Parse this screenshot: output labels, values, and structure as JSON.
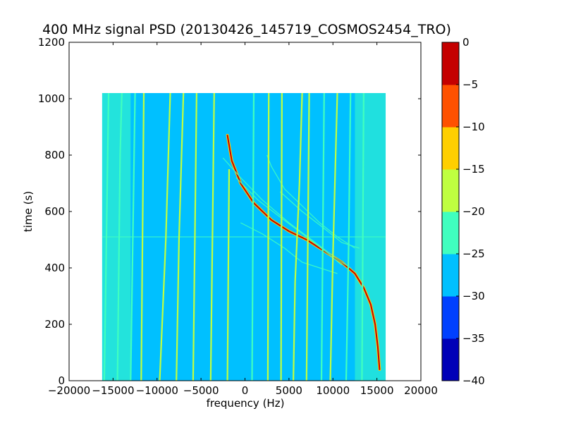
{
  "chart_data": {
    "type": "heatmap",
    "title": "400 MHz signal PSD (20130426_145719_COSMOS2454_TRO)",
    "xlabel": "frequency (Hz)",
    "ylabel": "time (s)",
    "xlim": [
      -20000,
      20000
    ],
    "ylim": [
      0,
      1200
    ],
    "xticks": [
      -20000,
      -15000,
      -10000,
      -5000,
      0,
      5000,
      10000,
      15000,
      20000
    ],
    "xtick_labels": [
      "−20000",
      "−15000",
      "−10000",
      "−5000",
      "0",
      "5000",
      "10000",
      "15000",
      "20000"
    ],
    "yticks": [
      0,
      200,
      400,
      600,
      800,
      1000,
      1200
    ],
    "ytick_labels": [
      "0",
      "200",
      "400",
      "600",
      "800",
      "1000",
      "1200"
    ],
    "data_extent": {
      "x": [
        -16250,
        16000
      ],
      "y": [
        0,
        1020
      ]
    },
    "background_level_db": -28,
    "noise_edge_level_db": -22,
    "horizontal_line_time_s": 510,
    "colorbar": {
      "levels": [
        -40,
        -35,
        -30,
        -25,
        -20,
        -15,
        -10,
        -5,
        0
      ],
      "tick_labels": [
        "−40",
        "−35",
        "−30",
        "−25",
        "−20",
        "−15",
        "−10",
        "−5",
        "0"
      ],
      "colors": [
        "#0000b7",
        "#0040ff",
        "#00c0ff",
        "#40ffbf",
        "#bfff40",
        "#ffcf00",
        "#ff5100",
        "#c40000"
      ]
    },
    "series": [
      {
        "kind": "doppler-curve",
        "level_db": -2,
        "points": [
          [
            -2000,
            870
          ],
          [
            -1500,
            780
          ],
          [
            -500,
            700
          ],
          [
            1000,
            630
          ],
          [
            3000,
            570
          ],
          [
            5000,
            530
          ],
          [
            7000,
            500
          ],
          [
            9000,
            460
          ],
          [
            11000,
            420
          ],
          [
            12500,
            380
          ],
          [
            13500,
            330
          ],
          [
            14300,
            270
          ],
          [
            14800,
            200
          ],
          [
            15100,
            120
          ],
          [
            15300,
            40
          ]
        ]
      },
      {
        "kind": "weak-curve",
        "level_db": -20,
        "points": [
          [
            -2500,
            790
          ],
          [
            -500,
            720
          ],
          [
            2000,
            640
          ],
          [
            5000,
            560
          ],
          [
            8000,
            490
          ],
          [
            10500,
            430
          ],
          [
            12000,
            400
          ]
        ]
      },
      {
        "kind": "weak-curve",
        "level_db": -20,
        "points": [
          [
            -1000,
            720
          ],
          [
            1500,
            640
          ],
          [
            4000,
            580
          ],
          [
            7000,
            510
          ],
          [
            9500,
            450
          ],
          [
            11000,
            410
          ]
        ]
      },
      {
        "kind": "weak-curve",
        "level_db": -20,
        "points": [
          [
            2500,
            800
          ],
          [
            3000,
            760
          ],
          [
            4500,
            680
          ],
          [
            6500,
            620
          ],
          [
            8500,
            560
          ],
          [
            10500,
            510
          ],
          [
            12500,
            470
          ]
        ]
      },
      {
        "kind": "weak-curve",
        "level_db": -20,
        "points": [
          [
            4000,
            670
          ],
          [
            6500,
            600
          ],
          [
            9000,
            540
          ],
          [
            11000,
            490
          ],
          [
            13000,
            470
          ]
        ]
      },
      {
        "kind": "weak-curve",
        "level_db": -20,
        "points": [
          [
            -500,
            560
          ],
          [
            2000,
            520
          ],
          [
            4500,
            470
          ],
          [
            6500,
            420
          ],
          [
            8500,
            400
          ],
          [
            10500,
            380
          ]
        ]
      },
      {
        "kind": "vertical-line",
        "level_db": -20,
        "points": [
          [
            -15500,
            1020
          ],
          [
            -16000,
            0
          ]
        ]
      },
      {
        "kind": "vertical-line",
        "level_db": -20,
        "points": [
          [
            -14000,
            1020
          ],
          [
            -14200,
            800
          ],
          [
            -14500,
            0
          ]
        ]
      },
      {
        "kind": "vertical-line",
        "level_db": -20,
        "points": [
          [
            -12500,
            1020
          ],
          [
            -13000,
            0
          ]
        ]
      },
      {
        "kind": "vertical-line",
        "level_db": -17,
        "points": [
          [
            -11500,
            1020
          ],
          [
            -11800,
            0
          ]
        ]
      },
      {
        "kind": "vertical-line",
        "level_db": -17,
        "points": [
          [
            -8500,
            1020
          ],
          [
            -9000,
            500
          ],
          [
            -9700,
            0
          ]
        ]
      },
      {
        "kind": "vertical-line",
        "level_db": -17,
        "points": [
          [
            -7000,
            1020
          ],
          [
            -7500,
            500
          ],
          [
            -7800,
            0
          ]
        ]
      },
      {
        "kind": "vertical-line",
        "level_db": -17,
        "points": [
          [
            -5500,
            1020
          ],
          [
            -5700,
            500
          ],
          [
            -5900,
            0
          ]
        ]
      },
      {
        "kind": "vertical-line",
        "level_db": -17,
        "points": [
          [
            -3500,
            1020
          ],
          [
            -3700,
            500
          ],
          [
            -3900,
            0
          ]
        ]
      },
      {
        "kind": "vertical-line",
        "level_db": -17,
        "points": [
          [
            -1800,
            750
          ],
          [
            -2000,
            0
          ]
        ]
      },
      {
        "kind": "vertical-line",
        "level_db": -20,
        "points": [
          [
            1000,
            1020
          ],
          [
            900,
            500
          ],
          [
            800,
            0
          ]
        ]
      },
      {
        "kind": "vertical-line",
        "level_db": -17,
        "points": [
          [
            2700,
            1020
          ],
          [
            2600,
            0
          ]
        ]
      },
      {
        "kind": "vertical-line",
        "level_db": -17,
        "points": [
          [
            4200,
            1020
          ],
          [
            4100,
            0
          ]
        ]
      },
      {
        "kind": "vertical-line",
        "level_db": -17,
        "points": [
          [
            6500,
            1020
          ],
          [
            6200,
            700
          ],
          [
            5700,
            350
          ],
          [
            5500,
            0
          ]
        ]
      },
      {
        "kind": "vertical-line",
        "level_db": -17,
        "points": [
          [
            7300,
            1020
          ],
          [
            7000,
            0
          ]
        ]
      },
      {
        "kind": "vertical-line",
        "level_db": -20,
        "points": [
          [
            9000,
            1020
          ],
          [
            8700,
            0
          ]
        ]
      },
      {
        "kind": "vertical-line",
        "level_db": -17,
        "points": [
          [
            10500,
            1020
          ],
          [
            10000,
            450
          ],
          [
            9700,
            0
          ]
        ]
      },
      {
        "kind": "vertical-line",
        "level_db": -20,
        "points": [
          [
            12000,
            1020
          ],
          [
            11800,
            500
          ],
          [
            11500,
            0
          ]
        ]
      },
      {
        "kind": "vertical-line",
        "level_db": -20,
        "points": [
          [
            13500,
            1020
          ],
          [
            13300,
            0
          ]
        ]
      }
    ]
  }
}
